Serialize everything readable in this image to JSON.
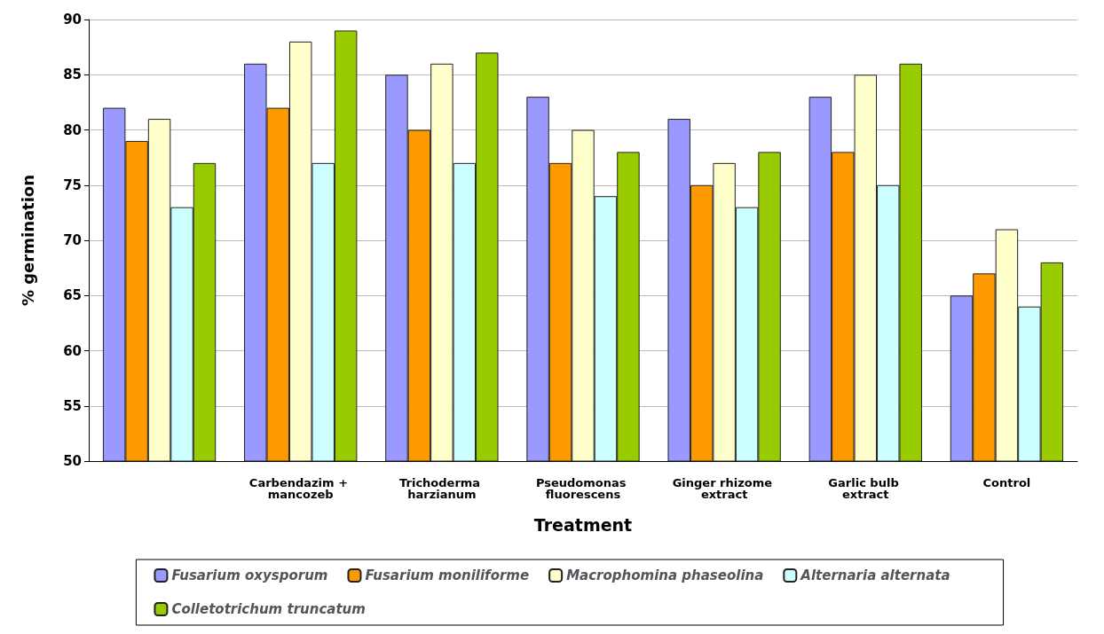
{
  "chart_data": {
    "type": "bar",
    "xlabel": "Treatment",
    "ylabel": "% germination",
    "categories": [
      null,
      "Carbendazim + mancozeb",
      "Trichoderma harzianum",
      "Pseudomonas fluorescens",
      "Ginger rhizome extract",
      "Garlic bulb extract",
      "Control"
    ],
    "series": [
      {
        "name": "Fusarium oxysporum",
        "color": "#9999ff",
        "values": [
          82,
          86,
          85,
          83,
          81,
          83,
          65
        ]
      },
      {
        "name": "Fusarium moniliforme",
        "color": "#ff9900",
        "values": [
          79,
          82,
          80,
          77,
          75,
          78,
          67
        ]
      },
      {
        "name": "Macrophomina phaseolina",
        "color": "#ffffcc",
        "values": [
          81,
          88,
          86,
          80,
          77,
          85,
          71
        ]
      },
      {
        "name": "Alternaria alternata",
        "color": "#ccffff",
        "values": [
          73,
          77,
          77,
          74,
          73,
          75,
          64
        ]
      },
      {
        "name": "Colletotrichum truncatum",
        "color": "#99cc00",
        "values": [
          77,
          89,
          87,
          78,
          78,
          86,
          68
        ]
      }
    ],
    "ylim": [
      50,
      90
    ],
    "yticks": [
      50,
      55,
      60,
      65,
      70,
      75,
      80,
      85,
      90
    ],
    "grid": "y",
    "legend": "bottom"
  }
}
